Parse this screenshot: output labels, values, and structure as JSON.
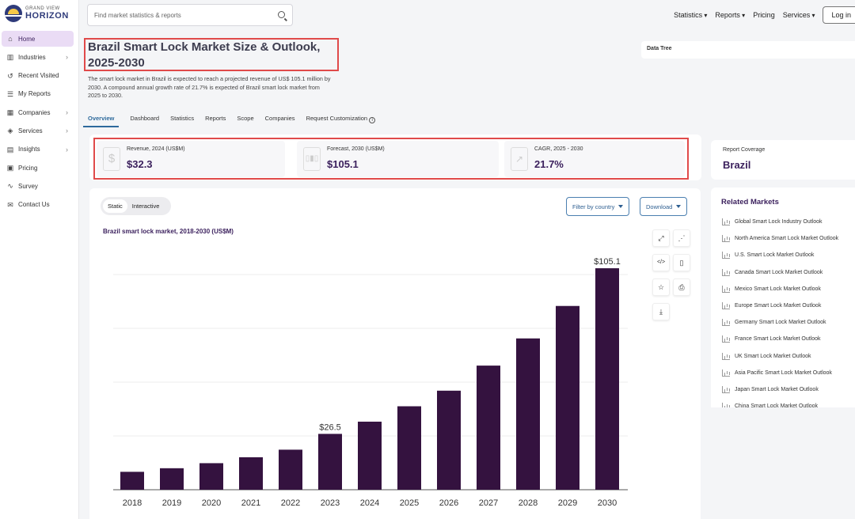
{
  "brand": {
    "top": "GRAND VIEW",
    "bottom": "HORIZON"
  },
  "sidebar": {
    "items": [
      {
        "label": "Home",
        "icon": "home-icon",
        "active": true,
        "chevron": false
      },
      {
        "label": "Industries",
        "icon": "bar-chart-icon",
        "active": false,
        "chevron": true
      },
      {
        "label": "Recent Visited",
        "icon": "history-icon",
        "active": false,
        "chevron": false
      },
      {
        "label": "My Reports",
        "icon": "list-icon",
        "active": false,
        "chevron": false
      },
      {
        "label": "Companies",
        "icon": "building-icon",
        "active": false,
        "chevron": true
      },
      {
        "label": "Services",
        "icon": "layers-icon",
        "active": false,
        "chevron": true
      },
      {
        "label": "Insights",
        "icon": "insights-icon",
        "active": false,
        "chevron": true
      },
      {
        "label": "Pricing",
        "icon": "pricing-icon",
        "active": false,
        "chevron": false
      },
      {
        "label": "Survey",
        "icon": "survey-icon",
        "active": false,
        "chevron": false
      },
      {
        "label": "Contact Us",
        "icon": "mail-icon",
        "active": false,
        "chevron": false
      }
    ]
  },
  "search": {
    "placeholder": "Find market statistics & reports"
  },
  "topnav": {
    "statistics": "Statistics",
    "reports": "Reports",
    "pricing": "Pricing",
    "services": "Services",
    "login": "Log in"
  },
  "page": {
    "title": "Brazil Smart Lock Market Size & Outlook, 2025-2030",
    "description": "The smart lock market in Brazil is expected to reach a projected revenue of US$ 105.1 million by 2030. A compound annual growth rate of 21.7% is expected of Brazil smart lock market from 2025 to 2030."
  },
  "tabs": [
    "Overview",
    "Dashboard",
    "Statistics",
    "Reports",
    "Scope",
    "Companies",
    "Request Customization"
  ],
  "data_tree": "Data Tree",
  "kpis": [
    {
      "label": "Revenue, 2024 (US$M)",
      "value": "$32.3",
      "icon": "dollar-icon"
    },
    {
      "label": "Forecast, 2030 (US$M)",
      "value": "$105.1",
      "icon": "forecast-icon"
    },
    {
      "label": "CAGR, 2025 - 2030",
      "value": "21.7%",
      "icon": "trend-icon"
    }
  ],
  "coverage": {
    "label": "Report Coverage",
    "value": "Brazil"
  },
  "chart_controls": {
    "static": "Static",
    "interactive": "Interactive",
    "filter": "Filter by country",
    "download": "Download"
  },
  "chart_data": {
    "type": "bar",
    "title": "Brazil smart lock market, 2018-2030 (US$M)",
    "categories": [
      "2018",
      "2019",
      "2020",
      "2021",
      "2022",
      "2023",
      "2024",
      "2025",
      "2026",
      "2027",
      "2028",
      "2029",
      "2030"
    ],
    "values": [
      8.5,
      10.2,
      12.6,
      15.4,
      19.0,
      26.5,
      32.3,
      39.6,
      47.0,
      58.9,
      71.8,
      87.2,
      105.1
    ],
    "data_labels": [
      null,
      null,
      null,
      null,
      null,
      "$26.5",
      null,
      null,
      null,
      null,
      null,
      null,
      "$105.1"
    ],
    "ylim": [
      0,
      110
    ],
    "grid": true,
    "bar_color": "#34123f"
  },
  "chart_tools": [
    "expand-icon",
    "share-icon",
    "embed-icon",
    "document-icon",
    "star-icon",
    "print-icon",
    "download-icon"
  ],
  "related": {
    "title": "Related Markets",
    "items": [
      "Global Smart Lock Industry Outlook",
      "North America Smart Lock Market Outlook",
      "U.S. Smart Lock Market Outlook",
      "Canada Smart Lock Market Outlook",
      "Mexico Smart Lock Market Outlook",
      "Europe Smart Lock Market Outlook",
      "Germany Smart Lock Market Outlook",
      "France Smart Lock Market Outlook",
      "UK Smart Lock Market Outlook",
      "Asia Pacific Smart Lock Market Outlook",
      "Japan Smart Lock Market Outlook",
      "China Smart Lock Market Outlook"
    ]
  }
}
